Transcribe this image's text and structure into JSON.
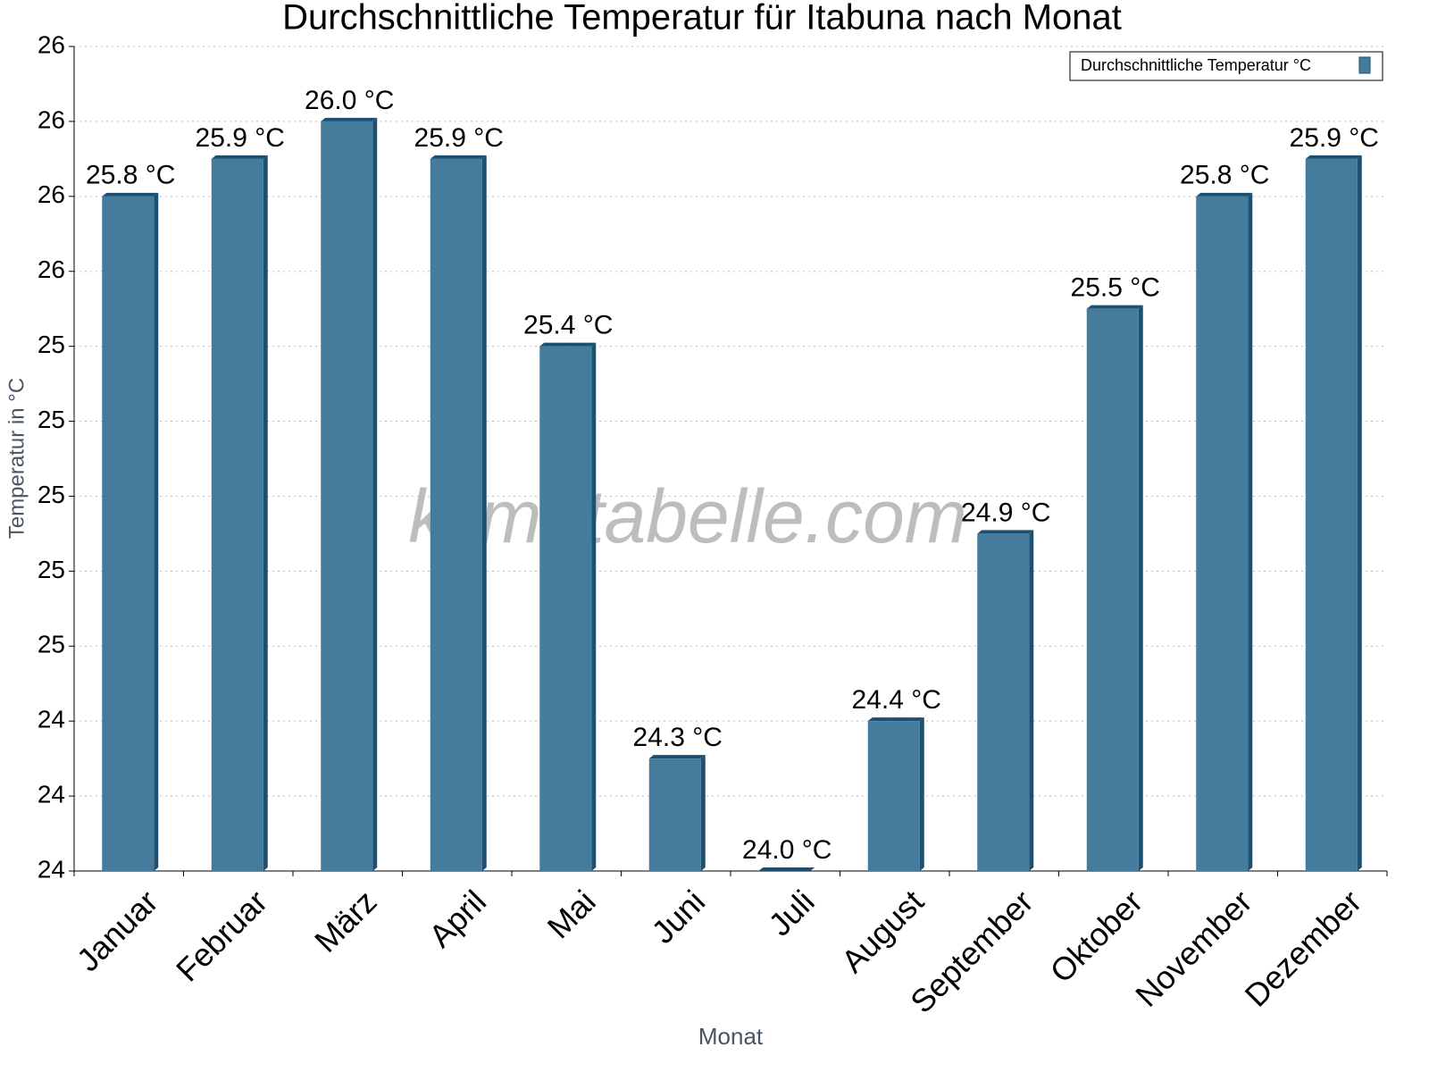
{
  "chart_data": {
    "type": "bar",
    "title": "Durchschnittliche Temperatur für Itabuna nach Monat",
    "watermark": "klimatabelle.com",
    "x_label": "Monat",
    "y_label": "Temperatur in °C",
    "categories": [
      "Januar",
      "Februar",
      "März",
      "April",
      "Mai",
      "Juni",
      "Juli",
      "August",
      "September",
      "Oktober",
      "November",
      "Dezember"
    ],
    "series": [
      {
        "name": "Durchschnittliche Temperatur °C",
        "color": "#457b9d",
        "values": [
          25.8,
          25.9,
          26.0,
          25.9,
          25.4,
          24.3,
          24.0,
          24.4,
          24.9,
          25.5,
          25.8,
          25.9
        ],
        "value_labels": [
          "25.8 °C",
          "25.9 °C",
          "26.0 °C",
          "25.9 °C",
          "25.4 °C",
          "24.3 °C",
          "24.0 °C",
          "24.4 °C",
          "24.9 °C",
          "25.5 °C",
          "25.8 °C",
          "25.9 °C"
        ]
      }
    ],
    "ylim": [
      24,
      26.2
    ],
    "yticks": [
      24,
      {
        "value": 24.2,
        "label": "24"
      },
      {
        "value": 24.4,
        "label": "24"
      },
      {
        "value": 24.6,
        "label": "25"
      },
      {
        "value": 24.8,
        "label": "25"
      },
      25,
      {
        "value": 25.2,
        "label": "25"
      },
      {
        "value": 25.4,
        "label": "25"
      },
      {
        "value": 25.6,
        "label": "26"
      },
      {
        "value": 25.8,
        "label": "26"
      },
      26,
      {
        "value": 26.2,
        "label": "26"
      }
    ],
    "grid": true,
    "legend": "top-right"
  }
}
